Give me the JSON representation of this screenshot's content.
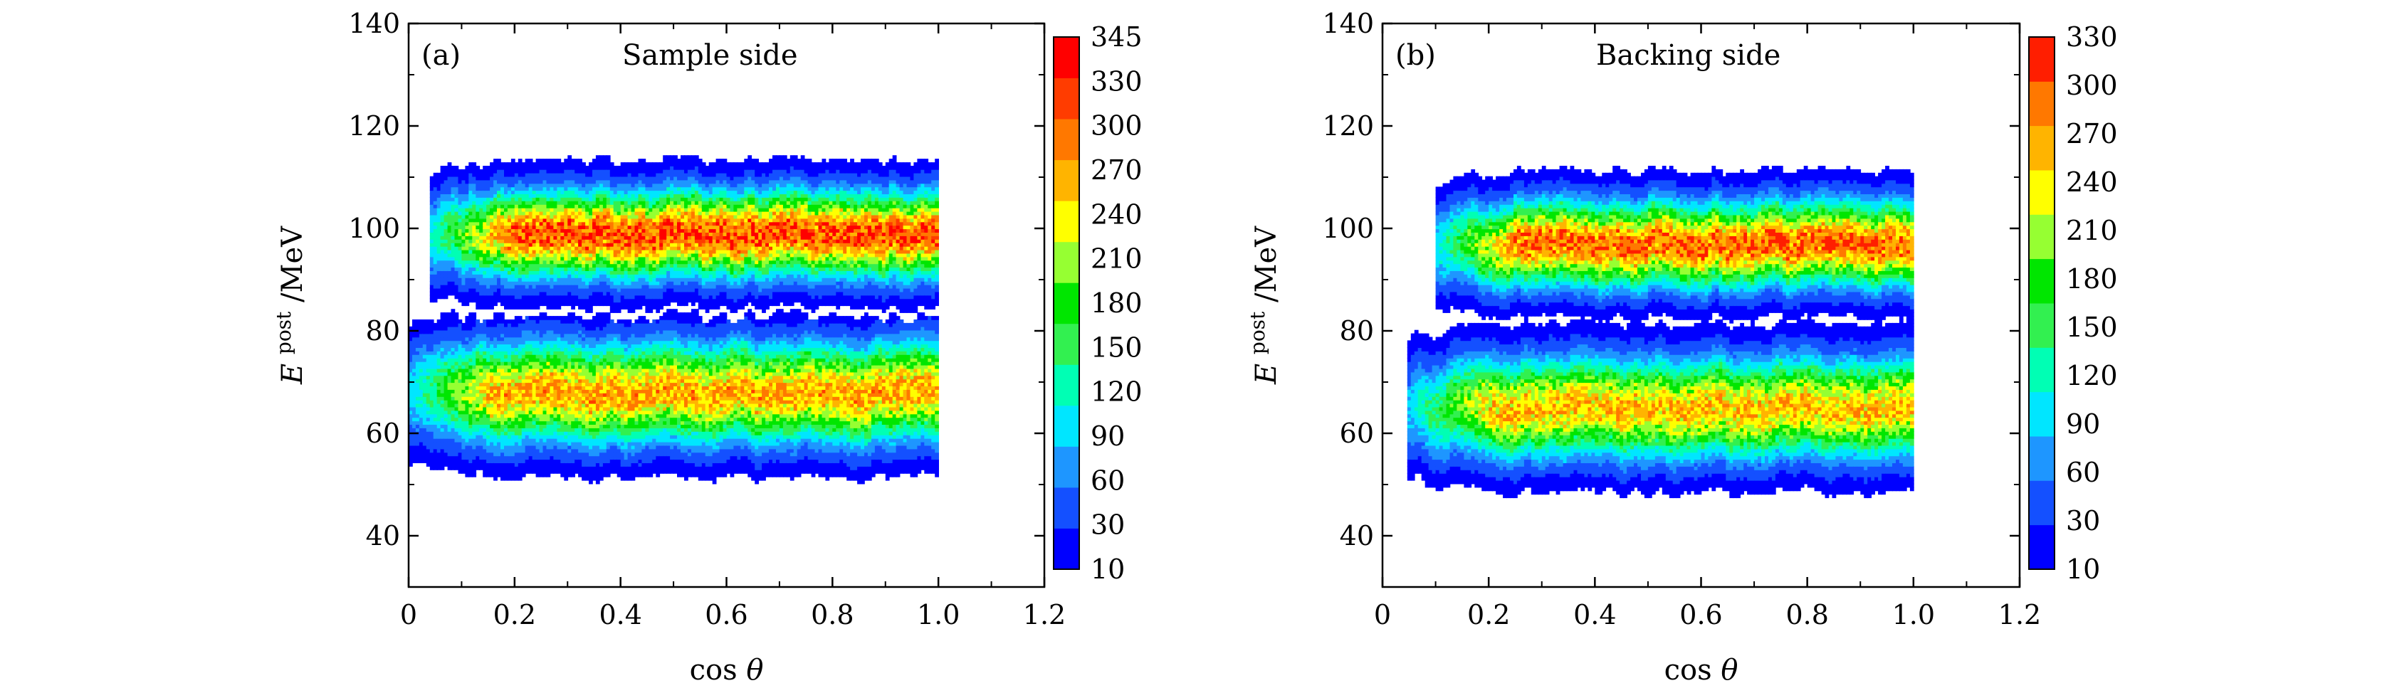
{
  "chart_data": [
    {
      "type": "heatmap",
      "panel_label": "(a)",
      "title": "Sample side",
      "xlabel_main": "cos",
      "xlabel_symbol": "θ",
      "ylabel_main": "E",
      "ylabel_sup": "post",
      "ylabel_unit": "/MeV",
      "xlim": [
        0,
        1.2
      ],
      "ylim": [
        30,
        140
      ],
      "xticks": [
        "0",
        "0.2",
        "0.4",
        "0.6",
        "0.8",
        "1.0",
        "1.2"
      ],
      "yticks": [
        "40",
        "60",
        "80",
        "100",
        "120",
        "140"
      ],
      "colorbar_ticks": [
        "10",
        "30",
        "60",
        "90",
        "120",
        "150",
        "180",
        "210",
        "240",
        "270",
        "300",
        "330",
        "345"
      ],
      "colorbar_colors": [
        "#0000ff",
        "#1450ff",
        "#1e96ff",
        "#00e6ff",
        "#00ffb4",
        "#32f050",
        "#00e600",
        "#96ff32",
        "#ffff00",
        "#ffb400",
        "#ff7800",
        "#ff3c00",
        "#ff0000"
      ],
      "bands": [
        {
          "name": "upper band",
          "E_center": 99,
          "E_width": 12,
          "E_extent": [
            80,
            116
          ],
          "cos_start": 0.04,
          "cos_end": 1.0,
          "peak": 345
        },
        {
          "name": "lower band",
          "E_center": 68,
          "E_width": 14,
          "E_extent": [
            46,
            83
          ],
          "cos_start": 0.0,
          "cos_end": 1.0,
          "peak": 300
        }
      ]
    },
    {
      "type": "heatmap",
      "panel_label": "(b)",
      "title": "Backing side",
      "xlabel_main": "cos",
      "xlabel_symbol": "θ",
      "ylabel_main": "E",
      "ylabel_sup": "post",
      "ylabel_unit": "/MeV",
      "xlim": [
        0,
        1.2
      ],
      "ylim": [
        30,
        140
      ],
      "xticks": [
        "0",
        "0.2",
        "0.4",
        "0.6",
        "0.8",
        "1.0",
        "1.2"
      ],
      "yticks": [
        "40",
        "60",
        "80",
        "100",
        "120",
        "140"
      ],
      "colorbar_ticks": [
        "10",
        "30",
        "60",
        "90",
        "120",
        "150",
        "180",
        "210",
        "240",
        "270",
        "300",
        "330"
      ],
      "colorbar_colors": [
        "#0000ff",
        "#1450ff",
        "#1e96ff",
        "#00e6ff",
        "#00ffb4",
        "#32f050",
        "#00e600",
        "#96ff32",
        "#ffff00",
        "#ffb400",
        "#ff7800",
        "#ff1e00"
      ],
      "bands": [
        {
          "name": "upper band",
          "E_center": 97,
          "E_width": 12,
          "E_extent": [
            80,
            113
          ],
          "cos_start": 0.1,
          "cos_end": 1.0,
          "peak": 330
        },
        {
          "name": "lower band",
          "E_center": 65,
          "E_width": 14,
          "E_extent": [
            44,
            83
          ],
          "cos_start": 0.05,
          "cos_end": 1.0,
          "peak": 290
        }
      ]
    }
  ]
}
